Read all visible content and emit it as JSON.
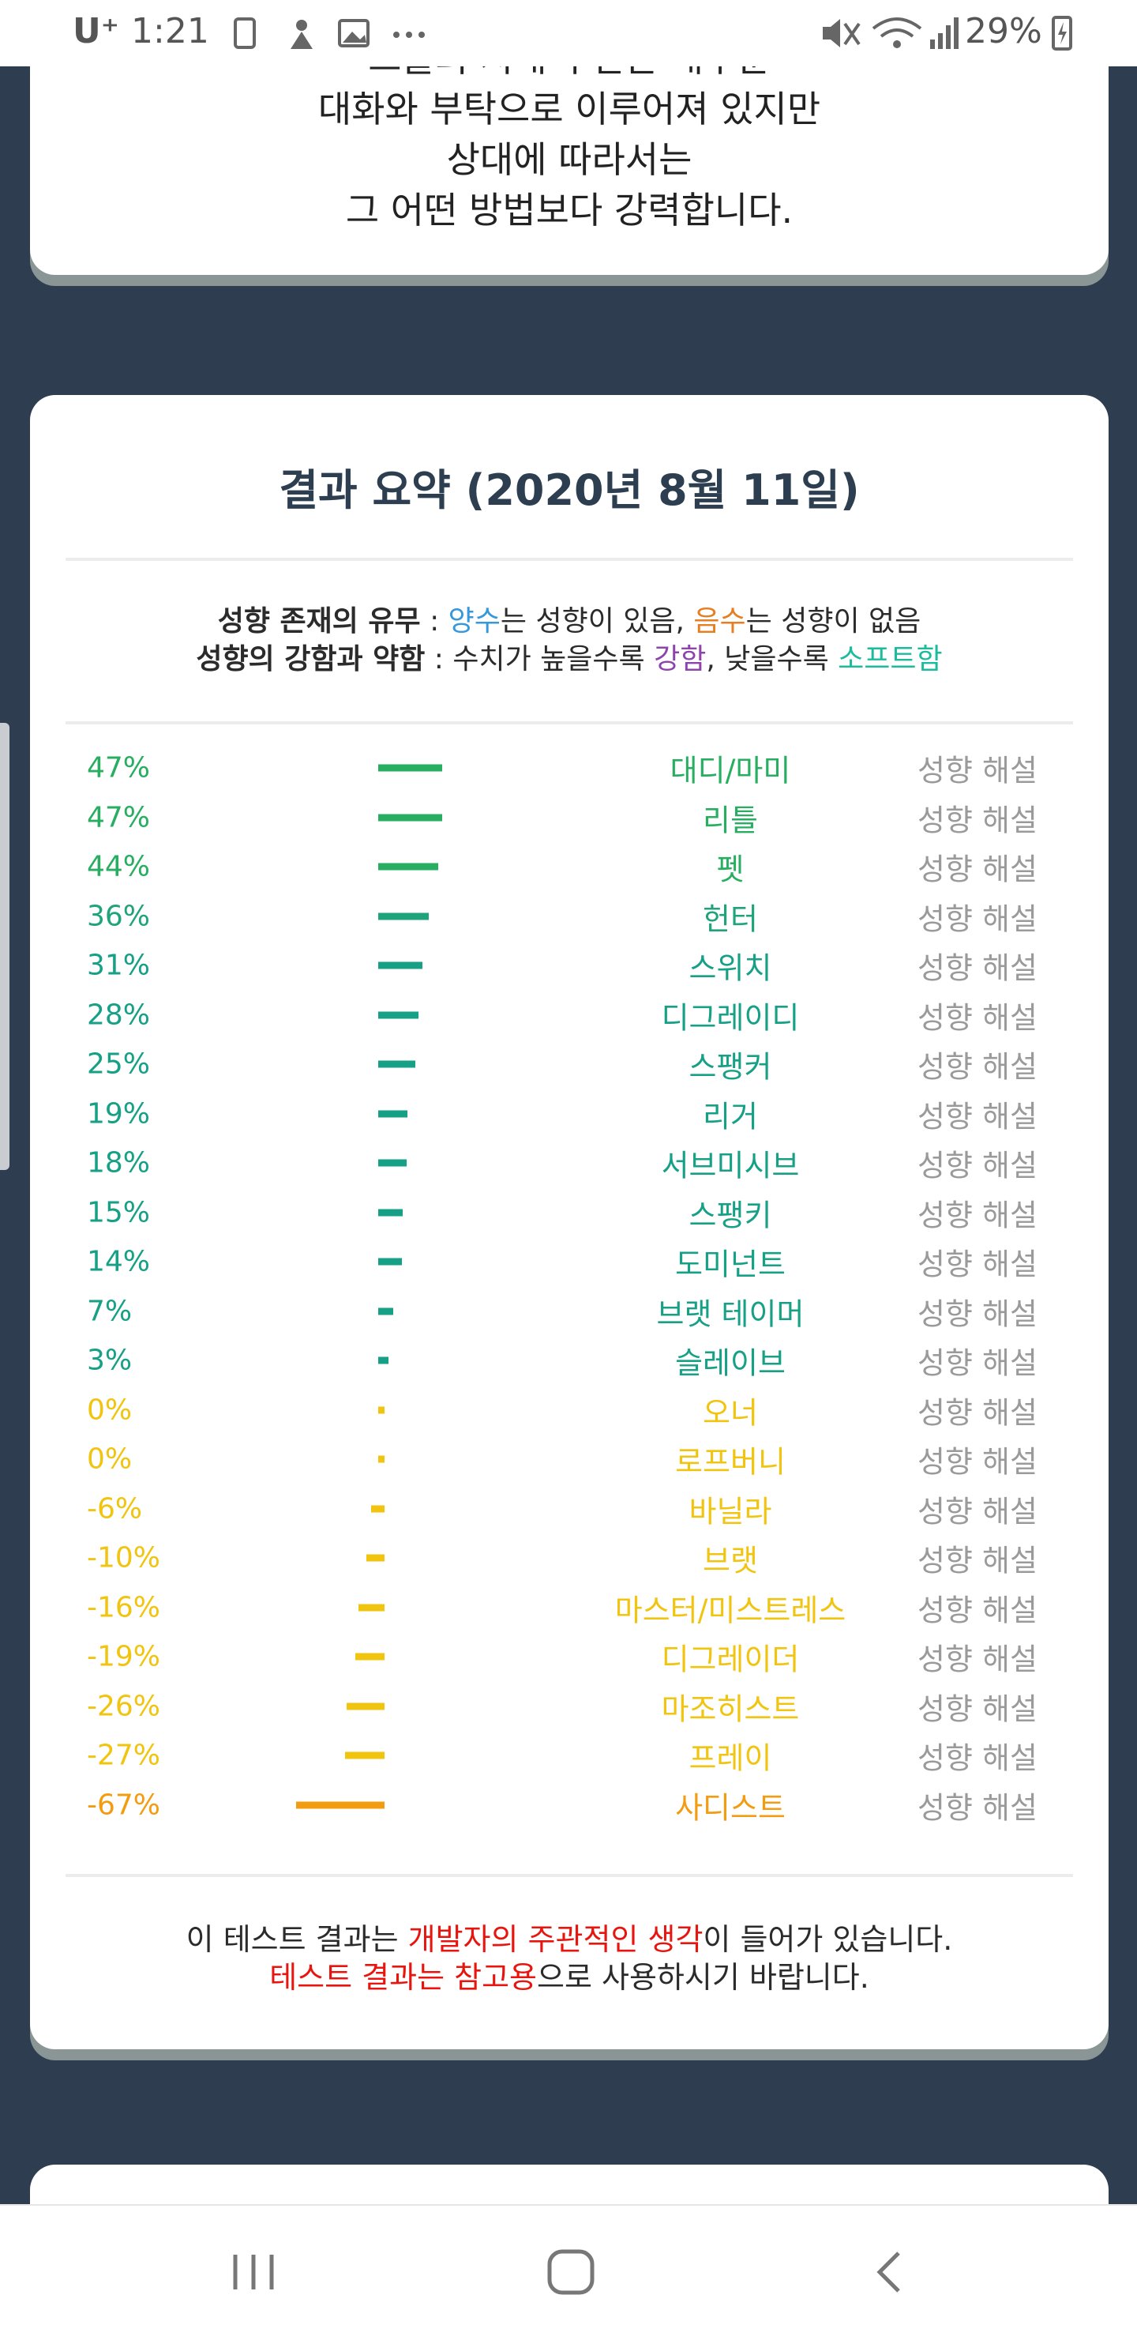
{
  "status_bar": {
    "carrier": "U⁺",
    "time": "1:21",
    "battery": "29%"
  },
  "intro_card": {
    "lines": [
      "그들의 지배 수단은 대부분",
      "대화와 부탁으로 이루어져 있지만",
      "상대에 따라서는",
      "그 어떤 방법보다 강력합니다."
    ]
  },
  "summary_card": {
    "title": "결과 요약 (2020년 8월 11일)",
    "legend": [
      [
        {
          "text": "성향 존재의 유무",
          "bold": true
        },
        {
          "text": " : "
        },
        {
          "text": "양수",
          "color": "#3498db"
        },
        {
          "text": "는 성향이 있음, "
        },
        {
          "text": "음수",
          "color": "#e67e22"
        },
        {
          "text": "는 성향이 없음"
        }
      ],
      [
        {
          "text": "성향의 강함과 약함",
          "bold": true
        },
        {
          "text": " : 수치가 높을수록 "
        },
        {
          "text": "강함",
          "color": "#8e44ad"
        },
        {
          "text": ", 낮을수록 "
        },
        {
          "text": "소프트함",
          "color": "#1abc9c"
        }
      ]
    ],
    "rows": [
      {
        "value": 47,
        "value_label": "47%",
        "name": "대디/마미",
        "link": "성향 해설",
        "color": "#27ae60"
      },
      {
        "value": 47,
        "value_label": "47%",
        "name": "리틀",
        "link": "성향 해설",
        "color": "#27ae60"
      },
      {
        "value": 44,
        "value_label": "44%",
        "name": "펫",
        "link": "성향 해설",
        "color": "#27ae60"
      },
      {
        "value": 36,
        "value_label": "36%",
        "name": "헌터",
        "link": "성향 해설",
        "color": "#1ea37a"
      },
      {
        "value": 31,
        "value_label": "31%",
        "name": "스위치",
        "link": "성향 해설",
        "color": "#16a085"
      },
      {
        "value": 28,
        "value_label": "28%",
        "name": "디그레이디",
        "link": "성향 해설",
        "color": "#16a085"
      },
      {
        "value": 25,
        "value_label": "25%",
        "name": "스팽커",
        "link": "성향 해설",
        "color": "#16a085"
      },
      {
        "value": 19,
        "value_label": "19%",
        "name": "리거",
        "link": "성향 해설",
        "color": "#16a085"
      },
      {
        "value": 18,
        "value_label": "18%",
        "name": "서브미시브",
        "link": "성향 해설",
        "color": "#16a085"
      },
      {
        "value": 15,
        "value_label": "15%",
        "name": "스팽키",
        "link": "성향 해설",
        "color": "#16a085"
      },
      {
        "value": 14,
        "value_label": "14%",
        "name": "도미넌트",
        "link": "성향 해설",
        "color": "#16a085"
      },
      {
        "value": 7,
        "value_label": "7%",
        "name": "브랫 테이머",
        "link": "성향 해설",
        "color": "#16a085"
      },
      {
        "value": 3,
        "value_label": "3%",
        "name": "슬레이브",
        "link": "성향 해설",
        "color": "#16a085"
      },
      {
        "value": 0,
        "value_label": "0%",
        "name": "오너",
        "link": "성향 해설",
        "color": "#f1c40f"
      },
      {
        "value": 0,
        "value_label": "0%",
        "name": "로프버니",
        "link": "성향 해설",
        "color": "#f1c40f"
      },
      {
        "value": -6,
        "value_label": "-6%",
        "name": "바닐라",
        "link": "성향 해설",
        "color": "#f1c40f"
      },
      {
        "value": -10,
        "value_label": "-10%",
        "name": "브랫",
        "link": "성향 해설",
        "color": "#f1c40f"
      },
      {
        "value": -16,
        "value_label": "-16%",
        "name": "마스터/미스트레스",
        "link": "성향 해설",
        "color": "#f1c40f"
      },
      {
        "value": -19,
        "value_label": "-19%",
        "name": "디그레이더",
        "link": "성향 해설",
        "color": "#f1c40f"
      },
      {
        "value": -26,
        "value_label": "-26%",
        "name": "마조히스트",
        "link": "성향 해설",
        "color": "#f1c40f"
      },
      {
        "value": -27,
        "value_label": "-27%",
        "name": "프레이",
        "link": "성향 해설",
        "color": "#f1c40f"
      },
      {
        "value": -67,
        "value_label": "-67%",
        "name": "사디스트",
        "link": "성향 해설",
        "color": "#f39c12"
      }
    ],
    "footer": [
      [
        {
          "text": "이 테스트 결과는 "
        },
        {
          "text": "개발자의 주관적인 생각",
          "color": "#e8150f"
        },
        {
          "text": "이 들어가 있습니다."
        }
      ],
      [
        {
          "text": "테스트 결과는 참고용",
          "color": "#e8150f"
        },
        {
          "text": "으로 사용하시기 바랍니다."
        }
      ]
    ]
  }
}
